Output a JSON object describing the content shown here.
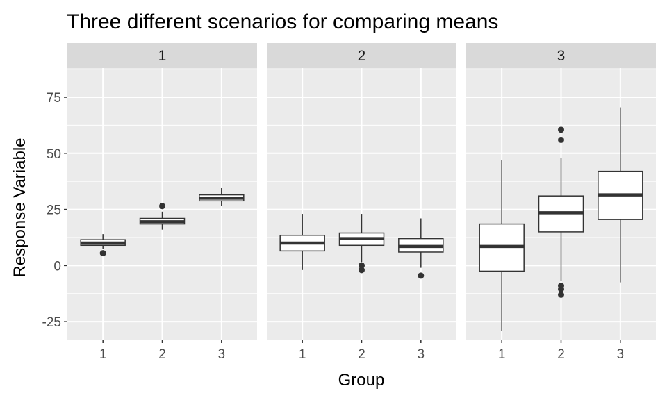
{
  "chart_data": {
    "type": "boxplot",
    "title": "Three different scenarios for comparing means",
    "xlabel": "Group",
    "ylabel": "Response Variable",
    "ylim": [
      -33,
      88
    ],
    "y_ticks": [
      -25,
      0,
      25,
      50,
      75
    ],
    "y_tick_labels": [
      "-25",
      "0",
      "25",
      "50",
      "75"
    ],
    "categories": [
      "1",
      "2",
      "3"
    ],
    "colors": {
      "panel_bg": "#EBEBEB",
      "grid": "#FFFFFF",
      "strip_bg": "#D9D9D9",
      "box_fill": "#FFFFFF",
      "box_line": "#333333"
    },
    "facets": [
      {
        "label": "1",
        "boxes": [
          {
            "group": "1",
            "whisker_low": 7.5,
            "q1": 9,
            "median": 10,
            "q3": 11.5,
            "whisker_high": 14,
            "outliers": [
              5.5
            ]
          },
          {
            "group": "2",
            "whisker_low": 16,
            "q1": 18.5,
            "median": 19.5,
            "q3": 21,
            "whisker_high": 24,
            "outliers": [
              26.5
            ]
          },
          {
            "group": "3",
            "whisker_low": 26.5,
            "q1": 28.8,
            "median": 30,
            "q3": 31.5,
            "whisker_high": 34.5,
            "outliers": []
          }
        ]
      },
      {
        "label": "2",
        "boxes": [
          {
            "group": "1",
            "whisker_low": -2,
            "q1": 6.5,
            "median": 10,
            "q3": 13.5,
            "whisker_high": 23,
            "outliers": []
          },
          {
            "group": "2",
            "whisker_low": 1.5,
            "q1": 9,
            "median": 12,
            "q3": 14.5,
            "whisker_high": 23,
            "outliers": [
              0,
              -2
            ]
          },
          {
            "group": "3",
            "whisker_low": -1,
            "q1": 6,
            "median": 8.5,
            "q3": 12,
            "whisker_high": 21,
            "outliers": [
              -4.5
            ]
          }
        ]
      },
      {
        "label": "3",
        "boxes": [
          {
            "group": "1",
            "whisker_low": -29,
            "q1": -2.5,
            "median": 8.5,
            "q3": 18.5,
            "whisker_high": 47,
            "outliers": []
          },
          {
            "group": "2",
            "whisker_low": -7,
            "q1": 15,
            "median": 23.5,
            "q3": 31,
            "whisker_high": 48,
            "outliers": [
              60.5,
              56,
              -9,
              -10.5,
              -13
            ]
          },
          {
            "group": "3",
            "whisker_low": -7.5,
            "q1": 20.5,
            "median": 31.5,
            "q3": 42,
            "whisker_high": 70.5,
            "outliers": []
          }
        ]
      }
    ]
  }
}
